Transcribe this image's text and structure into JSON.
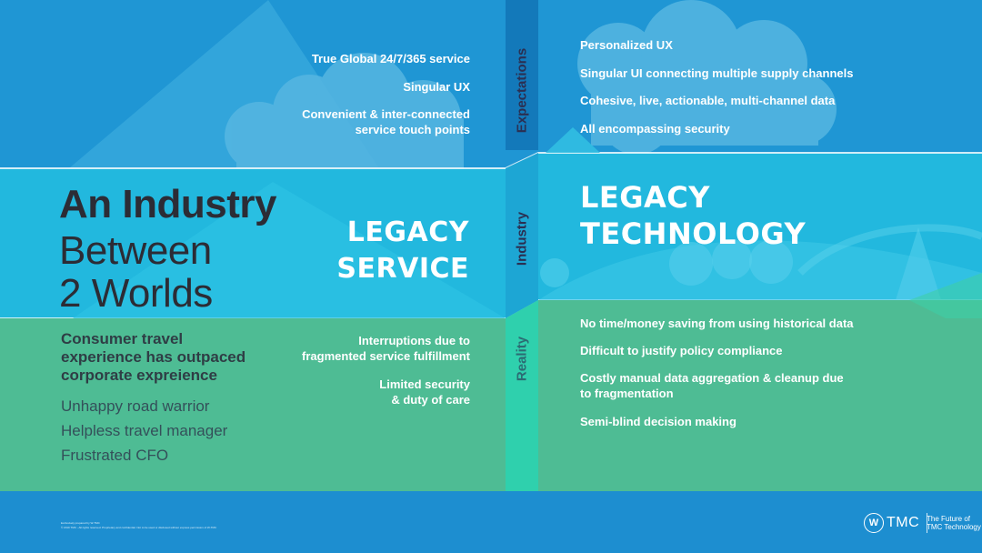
{
  "left_expectations": [
    "True Global 24/7/365 service",
    "Singular UX",
    "Convenient & inter-connected\nservice touch points"
  ],
  "right_expectations": [
    "Personalized UX",
    "Singular UI connecting multiple supply channels",
    "Cohesive, live, actionable, multi-channel data",
    "All encompassing security"
  ],
  "band_labels": {
    "expectations": "Expectations",
    "industry": "Industry",
    "reality": "Reality"
  },
  "headline": {
    "line1": "An Industry",
    "line2": "Between",
    "line3": "2 Worlds"
  },
  "legacy_service": {
    "line1": "LEGACY",
    "line2": "SERVICE"
  },
  "legacy_technology": {
    "line1": "LEGACY",
    "line2": "TECHNOLOGY"
  },
  "consumer_text": "Consumer travel\nexperience has outpaced\ncorporate expreience",
  "personas": [
    "Unhappy road warrior",
    "Helpless travel manager",
    "Frustrated CFO"
  ],
  "left_reality": [
    "Interruptions due to\nfragmented service fulfillment",
    "Limited security\n& duty of care"
  ],
  "right_reality": [
    "No time/money saving from using historical data",
    "Difficult to justify policy compliance",
    "Costly manual data aggregation & cleanup due\nto fragmentation",
    "Semi-blind decision making"
  ],
  "footer": {
    "fine_print_1": "Exclusively prepared by W-TMC",
    "fine_print_2": "© 2019 TMC - All rights reserved. Proprietary and confidential. Not to be used or disclosed without express permission of W-TMC",
    "logo_mark": "W",
    "logo_text": "TMC",
    "tagline_1": "The Future of",
    "tagline_2": "TMC Technology"
  },
  "colors": {
    "sky_blue": "#1f96d4",
    "middle_cyan": "#22b8de",
    "reality_green": "#4ebc94",
    "footer_blue": "#1d8ed0",
    "dark_band": "#1379ba",
    "headline_dark": "#2c2c35"
  }
}
